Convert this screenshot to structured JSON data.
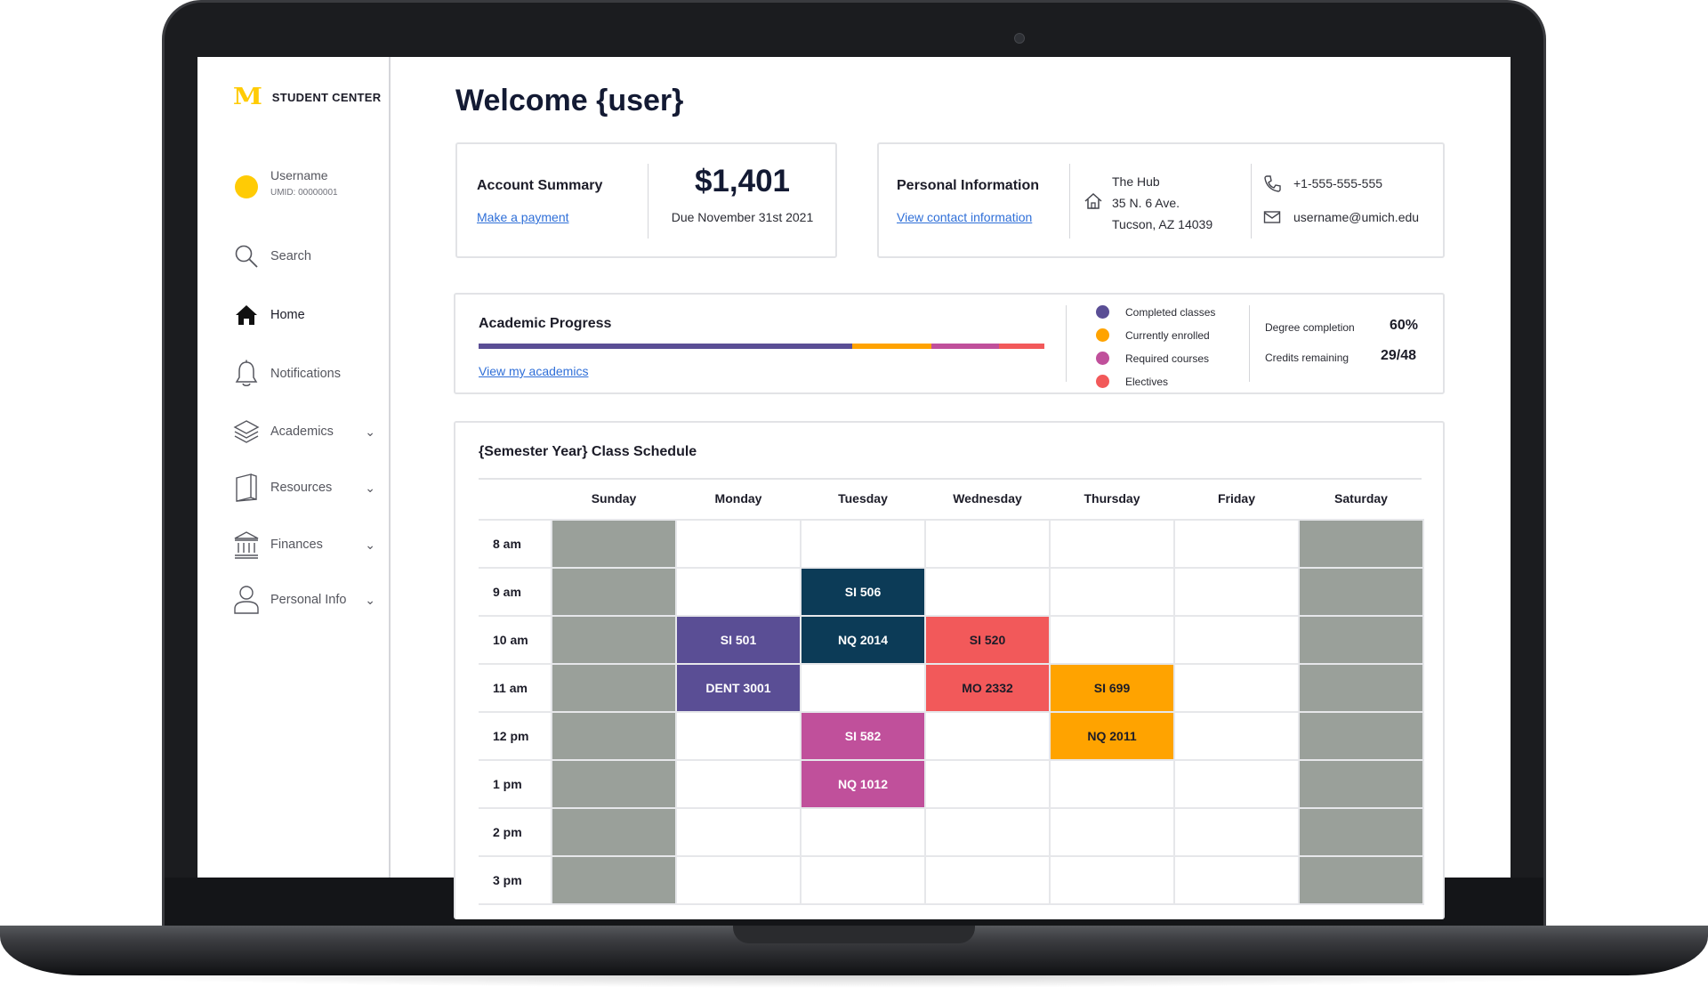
{
  "brand": {
    "logo": "M",
    "name": "STUDENT CENTER",
    "accent": "#ffcb05"
  },
  "user": {
    "name": "Username",
    "umid": "UMID: 00000001"
  },
  "nav": [
    {
      "label": "Search",
      "icon": "search-icon"
    },
    {
      "label": "Home",
      "icon": "home-icon",
      "active": true
    },
    {
      "label": "Notifications",
      "icon": "bell-icon"
    },
    {
      "label": "Academics",
      "icon": "academics-icon",
      "expandable": true
    },
    {
      "label": "Resources",
      "icon": "book-icon",
      "expandable": true
    },
    {
      "label": "Finances",
      "icon": "bank-icon",
      "expandable": true
    },
    {
      "label": "Personal Info",
      "icon": "person-icon",
      "expandable": true
    }
  ],
  "welcome": "Welcome {user}",
  "account": {
    "title": "Account Summary",
    "link": "Make a payment",
    "amount": "$1,401",
    "due": "Due November 31st 2021"
  },
  "personal": {
    "title": "Personal Information",
    "link": "View contact information",
    "address": [
      "The Hub",
      "35 N. 6 Ave.",
      "Tucson, AZ 14039"
    ],
    "phone": "+1-555-555-555",
    "email": "username@umich.edu"
  },
  "progress": {
    "title": "Academic Progress",
    "link": "View my academics",
    "segments": [
      {
        "label": "Completed classes",
        "color": "#5a4e95",
        "fraction": 0.66
      },
      {
        "label": "Currently enrolled",
        "color": "#ffa300",
        "fraction": 0.14
      },
      {
        "label": "Required courses",
        "color": "#c0509b",
        "fraction": 0.12
      },
      {
        "label": "Electives",
        "color": "#f2595a",
        "fraction": 0.08
      }
    ],
    "stats": [
      {
        "label": "Degree completion",
        "value": "60%"
      },
      {
        "label": "Credits remaining",
        "value": "29/48"
      }
    ]
  },
  "schedule": {
    "title": "{Semester Year} Class Schedule",
    "days": [
      "Sunday",
      "Monday",
      "Tuesday",
      "Wednesday",
      "Thursday",
      "Friday",
      "Saturday"
    ],
    "times": [
      "8 am",
      "9 am",
      "10 am",
      "11 am",
      "12 pm",
      "1 pm",
      "2 pm",
      "3 pm"
    ],
    "off_days": [
      0,
      6
    ],
    "colors": {
      "navy": "#0c3b57",
      "purple": "#5a4e95",
      "coral": "#f2595a",
      "orange": "#ffa300",
      "magenta": "#c0509b",
      "off": "#9aa09a"
    },
    "events": [
      {
        "day": 2,
        "time": 1,
        "label": "SI 506",
        "color": "navy"
      },
      {
        "day": 1,
        "time": 2,
        "label": "SI 501",
        "color": "purple"
      },
      {
        "day": 2,
        "time": 2,
        "label": "NQ 2014",
        "color": "navy"
      },
      {
        "day": 3,
        "time": 2,
        "label": "SI 520",
        "color": "coral"
      },
      {
        "day": 1,
        "time": 3,
        "label": "DENT 3001",
        "color": "purple"
      },
      {
        "day": 3,
        "time": 3,
        "label": "MO 2332",
        "color": "coral"
      },
      {
        "day": 4,
        "time": 3,
        "label": "SI 699",
        "color": "orange"
      },
      {
        "day": 2,
        "time": 4,
        "label": "SI 582",
        "color": "magenta"
      },
      {
        "day": 4,
        "time": 4,
        "label": "NQ 2011",
        "color": "orange"
      },
      {
        "day": 2,
        "time": 5,
        "label": "NQ 1012",
        "color": "magenta"
      }
    ]
  }
}
